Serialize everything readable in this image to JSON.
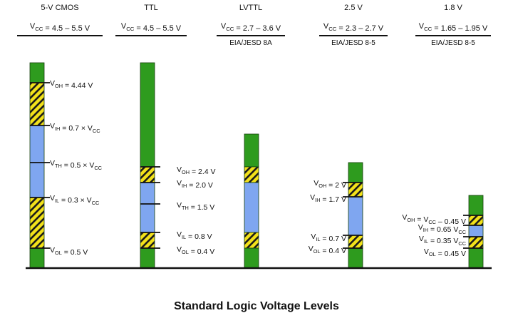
{
  "title": "Standard Logic Voltage Levels",
  "colors": {
    "logic_region": "#2e9b1e",
    "threshold_region": "#7fa6f0",
    "hatch_fill": "#f3e21a",
    "hatch_stripe": "#1a1a1a",
    "ink": "#111111"
  },
  "families": [
    {
      "name": "5-V CMOS",
      "vcc": {
        "pre": "V",
        "sub": "CC",
        "post": " = 4.5 – 5.5 V"
      },
      "standard": "",
      "levels": [
        {
          "pre": "V",
          "sub": "OH",
          "post": " = 4.44 V"
        },
        {
          "pre": "V",
          "sub": "IH",
          "post": " = 0.7 × V",
          "sub2": "CC"
        },
        {
          "pre": "V",
          "sub": "TH",
          "post": " = 0.5 × V",
          "sub2": "CC"
        },
        {
          "pre": "V",
          "sub": "IL",
          "post": " = 0.3 × V",
          "sub2": "CC"
        },
        {
          "pre": "V",
          "sub": "OL",
          "post": " = 0.5 V"
        }
      ]
    },
    {
      "name": "TTL",
      "vcc": {
        "pre": "V",
        "sub": "CC",
        "post": " = 4.5 – 5.5 V"
      },
      "standard": "",
      "levels": [
        {
          "pre": "V",
          "sub": "OH",
          "post": " = 2.4 V"
        },
        {
          "pre": "V",
          "sub": "IH",
          "post": " = 2.0 V"
        },
        {
          "pre": "V",
          "sub": "TH",
          "post": " = 1.5 V"
        },
        {
          "pre": "V",
          "sub": "IL",
          "post": " = 0.8 V"
        },
        {
          "pre": "V",
          "sub": "OL",
          "post": " = 0.4 V"
        }
      ]
    },
    {
      "name": "LVTTL",
      "vcc": {
        "pre": "V",
        "sub": "CC",
        "post": " = 2.7 – 3.6 V"
      },
      "standard": "EIA/JESD 8A",
      "levels": []
    },
    {
      "name": "2.5 V",
      "vcc": {
        "pre": "V",
        "sub": "CC",
        "post": " = 2.3 – 2.7 V"
      },
      "standard": "EIA/JESD 8-5",
      "levels": [
        {
          "pre": "V",
          "sub": "OH",
          "post": " = 2 V"
        },
        {
          "pre": "V",
          "sub": "IH",
          "post": " = 1.7 V"
        },
        {
          "pre": "V",
          "sub": "IL",
          "post": " = 0.7 V"
        },
        {
          "pre": "V",
          "sub": "OL",
          "post": " = 0.4 V"
        }
      ]
    },
    {
      "name": "1.8 V",
      "vcc": {
        "pre": "V",
        "sub": "CC",
        "post": " = 1.65 – 1.95 V"
      },
      "standard": "EIA/JESD 8-5",
      "levels": [
        {
          "pre": "V",
          "sub": "OH",
          "post": " = V",
          "sub2": "CC",
          "post2": " – 0.45 V"
        },
        {
          "pre": "V",
          "sub": "IH",
          "post": " = 0.65 V",
          "sub2": "CC"
        },
        {
          "pre": "V",
          "sub": "IL",
          "post": " = 0.35 V",
          "sub2": "CC"
        },
        {
          "pre": "V",
          "sub": "OL",
          "post": " = 0.45 V"
        }
      ]
    }
  ]
}
